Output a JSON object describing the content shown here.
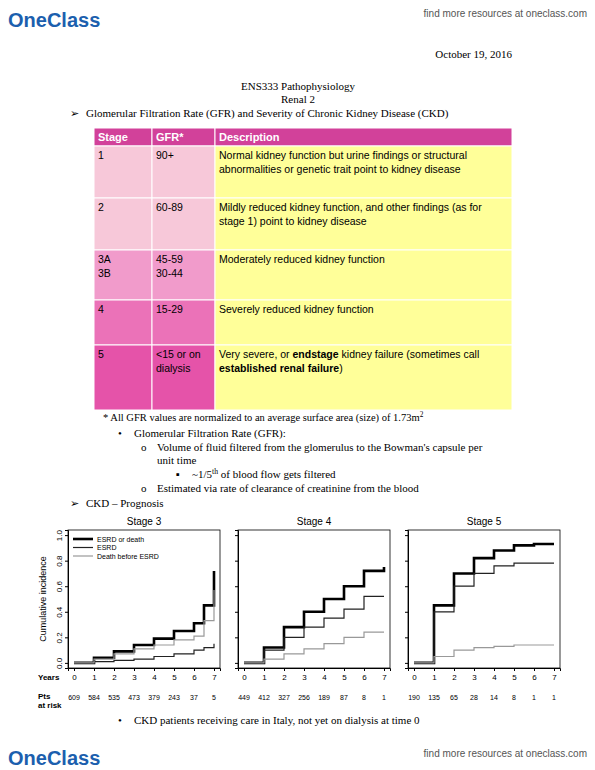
{
  "header": {
    "logo": "OneClass",
    "link": "find more resources at oneclass.com"
  },
  "date": "October 19, 2016",
  "title": [
    "ENS333 Pathophysiology",
    "Renal 2"
  ],
  "section1": {
    "bullet": "➢",
    "text": "Glomerular Filtration Rate (GFR) and Severity of Chronic Kidney Disease (CKD)"
  },
  "table": {
    "header": [
      "Stage",
      "GFR*",
      "Description"
    ],
    "rows": [
      {
        "stage": [
          "1"
        ],
        "gfr": [
          "90+"
        ],
        "description": [
          [
            {
              "text": "Normal kidney function but urine findings or structural"
            }
          ],
          [
            {
              "text": "abnormalities or genetic trait point to kidney disease"
            }
          ]
        ]
      },
      {
        "stage": [
          "2"
        ],
        "gfr": [
          "60-89"
        ],
        "description": [
          [
            {
              "text": "Mildly reduced kidney function, and other findings (as for"
            }
          ],
          [
            {
              "text": "stage 1) point to kidney disease"
            }
          ]
        ]
      },
      {
        "stage": [
          "3A",
          "3B"
        ],
        "gfr": [
          "45-59",
          "30-44"
        ],
        "description": [
          [
            {
              "text": "Moderately reduced kidney function"
            }
          ]
        ]
      },
      {
        "stage": [
          "4"
        ],
        "gfr": [
          "15-29"
        ],
        "description": [
          [
            {
              "text": "Severely reduced kidney function"
            }
          ]
        ]
      },
      {
        "stage": [
          "5"
        ],
        "gfr": [
          "<15 or on",
          "dialysis"
        ],
        "description": [
          [
            {
              "text": "Very severe, or "
            },
            {
              "text": "endstage",
              "bold": true
            },
            {
              "text": " kidney failure (sometimes call"
            }
          ],
          [
            {
              "text": "established renal failure",
              "bold": true
            },
            {
              "text": ")"
            }
          ]
        ]
      }
    ]
  },
  "footnote": {
    "text": "* All GFR values are normalized to an average surface area (size) of 1.73m",
    "superscript": "2"
  },
  "notes": [
    {
      "bullet": "•",
      "text": "Glomerular Filtration Rate (GFR):"
    },
    {
      "bullet": "o",
      "text": "Volume of fluid filtered from the glomerulus to the Bowman's capsule per",
      "continuation": "unit time"
    },
    {
      "bullet": "▪",
      "text": "~1/5",
      "superscript": "th",
      "text_after": " of blood flow gets filtered"
    },
    {
      "bullet": "o",
      "text": "Estimated via rate of clearance of creatinine from the blood"
    }
  ],
  "section2": {
    "bullet": "➢",
    "text": "CKD – Prognosis"
  },
  "prognosis": {
    "years_label": "Years",
    "at_risk_label": [
      "Pts",
      "at risk"
    ]
  },
  "chart_data": [
    {
      "type": "line",
      "title": "Stage 3",
      "ylabel": "Cumulative incidence",
      "x": [
        0,
        1,
        2,
        3,
        4,
        5,
        6,
        6.5,
        7
      ],
      "xlim": [
        -0.3,
        7.3
      ],
      "xticks": [
        0,
        1,
        2,
        3,
        4,
        5,
        6,
        7
      ],
      "ylim": [
        -0.04,
        1.04
      ],
      "yticks": [
        {
          "value": 0,
          "label": "0.0"
        },
        {
          "value": 0.2,
          "label": "0.2"
        },
        {
          "value": 0.4,
          "label": "0.4"
        },
        {
          "value": 0.6,
          "label": "0.6"
        },
        {
          "value": 0.8,
          "label": "0.8"
        },
        {
          "value": 1,
          "label": "1.0"
        }
      ],
      "legend": "top-left",
      "at_risk": [
        609,
        584,
        535,
        473,
        379,
        243,
        37,
        5
      ],
      "series": [
        {
          "name": "ESRD or death",
          "color": "#000000",
          "line_style": "thick",
          "values": [
            0,
            0.04,
            0.09,
            0.14,
            0.19,
            0.25,
            0.31,
            0.45,
            0.72
          ]
        },
        {
          "name": "ESRD",
          "color": "#222222",
          "line_style": "solid",
          "values": [
            0,
            0.01,
            0.02,
            0.03,
            0.05,
            0.07,
            0.1,
            0.12,
            0.15
          ]
        },
        {
          "name": "Death before ESRD",
          "color": "#999999",
          "line_style": "solid",
          "values": [
            0,
            0.03,
            0.07,
            0.11,
            0.14,
            0.18,
            0.21,
            0.33,
            0.57
          ]
        }
      ]
    },
    {
      "type": "line",
      "title": "Stage 4",
      "x": [
        0,
        1,
        2,
        3,
        4,
        5,
        6,
        7
      ],
      "xlim": [
        -0.3,
        7.3
      ],
      "xticks": [
        0,
        1,
        2,
        3,
        4,
        5,
        6,
        7
      ],
      "ylim": [
        -0.04,
        1.04
      ],
      "yticks": [
        0,
        0.2,
        0.4,
        0.6,
        0.8,
        1
      ],
      "tick_labels": "x",
      "at_risk": [
        449,
        412,
        327,
        256,
        189,
        87,
        8,
        1
      ],
      "series": [
        {
          "color": "#000000",
          "line_style": "thick",
          "values": [
            0,
            0.12,
            0.28,
            0.4,
            0.5,
            0.6,
            0.72,
            0.75
          ]
        },
        {
          "color": "#222222",
          "line_style": "solid",
          "values": [
            0,
            0.1,
            0.2,
            0.28,
            0.35,
            0.42,
            0.52,
            0.52
          ]
        },
        {
          "color": "#999999",
          "line_style": "solid",
          "values": [
            0,
            0.03,
            0.07,
            0.11,
            0.15,
            0.2,
            0.24,
            0.24
          ]
        }
      ]
    },
    {
      "type": "line",
      "title": "Stage 5",
      "x": [
        0,
        1,
        2,
        3,
        4,
        5,
        6,
        7
      ],
      "xlim": [
        -0.3,
        7.3
      ],
      "xticks": [
        0,
        1,
        2,
        3,
        4,
        5,
        6,
        7
      ],
      "ylim": [
        -0.04,
        1.04
      ],
      "yticks": [
        0,
        0.2,
        0.4,
        0.6,
        0.8,
        1
      ],
      "tick_labels": "x",
      "at_risk": [
        190,
        135,
        65,
        28,
        14,
        8,
        1,
        1
      ],
      "series": [
        {
          "color": "#000000",
          "line_style": "thick",
          "values": [
            0,
            0.45,
            0.7,
            0.82,
            0.88,
            0.92,
            0.93,
            0.93
          ]
        },
        {
          "color": "#222222",
          "line_style": "solid",
          "values": [
            0,
            0.4,
            0.6,
            0.7,
            0.76,
            0.78,
            0.78,
            0.78
          ]
        },
        {
          "color": "#999999",
          "line_style": "solid",
          "values": [
            0,
            0.05,
            0.1,
            0.12,
            0.13,
            0.14,
            0.14,
            0.14
          ]
        }
      ]
    }
  ],
  "note_bottom": {
    "bullet": "•",
    "text": "CKD patients receiving care in Italy, not yet on dialysis at time 0"
  },
  "footer": {
    "logo": "OneClass",
    "link": "find more resources at oneclass.com"
  }
}
